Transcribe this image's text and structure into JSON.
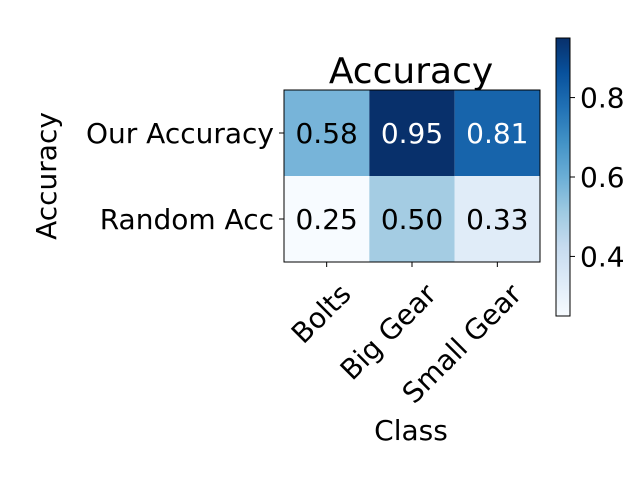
{
  "chart_data": {
    "type": "heatmap",
    "title": "Accuracy",
    "xlabel": "Class",
    "ylabel": "Accuracy",
    "x_categories": [
      "Bolts",
      "Big Gear",
      "Small Gear"
    ],
    "y_categories": [
      "Our Accuracy",
      "Random Acc"
    ],
    "values": [
      [
        0.58,
        0.95,
        0.81
      ],
      [
        0.25,
        0.5,
        0.33
      ]
    ],
    "value_labels": [
      [
        "0.58",
        "0.95",
        "0.81"
      ],
      [
        "0.25",
        "0.50",
        "0.33"
      ]
    ],
    "colormap": "Blues",
    "colorbar": {
      "range": [
        0.25,
        0.95
      ],
      "ticks": [
        0.4,
        0.6,
        0.8
      ],
      "tick_labels": [
        "0.4",
        "0.6",
        "0.8"
      ]
    },
    "grid": false
  }
}
